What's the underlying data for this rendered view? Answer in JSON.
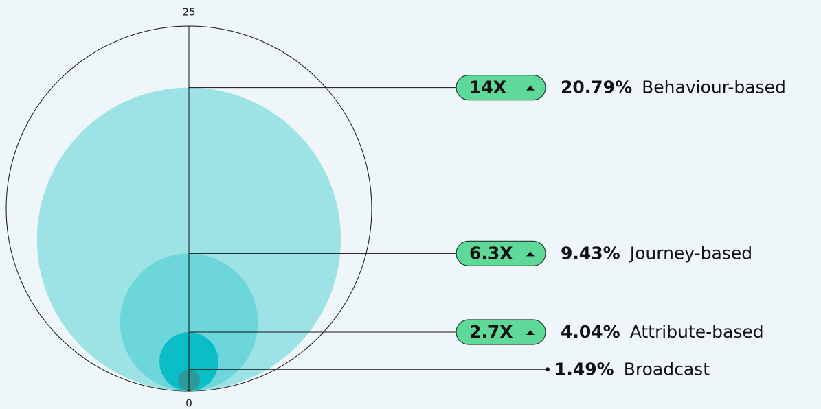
{
  "chart_data": {
    "type": "nested-bubble",
    "categories": [
      "Behaviour-based",
      "Journey-based",
      "Attribute-based",
      "Broadcast"
    ],
    "values": [
      20.79,
      9.43,
      4.04,
      1.49
    ],
    "value_labels": [
      "20.79%",
      "9.43%",
      "4.04%",
      "1.49%"
    ],
    "multipliers": [
      "14X",
      "6.3X",
      "2.7X",
      null
    ],
    "colors": [
      "#9de3e6",
      "#6dd6db",
      "#0bbdc6",
      "#2a9a9c"
    ],
    "ylim": [
      0,
      25
    ],
    "yticks": [
      0,
      25
    ]
  }
}
